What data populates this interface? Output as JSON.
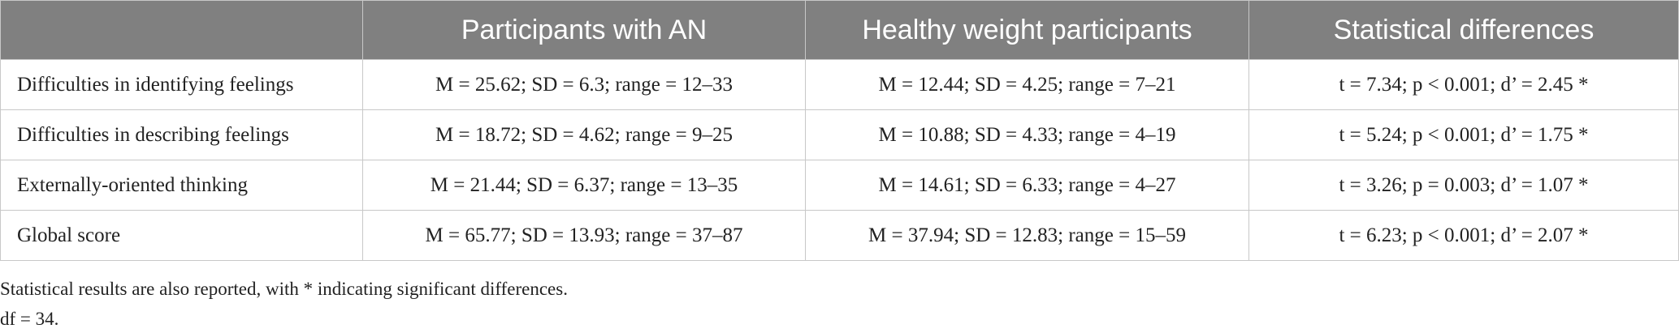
{
  "table": {
    "header": [
      "",
      "Participants with AN",
      "Healthy weight participants",
      "Statistical differences"
    ],
    "rows": [
      [
        "Difficulties in identifying feelings",
        "M = 25.62; SD = 6.3; range = 12–33",
        "M = 12.44; SD = 4.25; range = 7–21",
        "t = 7.34; p < 0.001; d’ = 2.45 *"
      ],
      [
        "Difficulties in describing feelings",
        "M = 18.72; SD = 4.62; range = 9–25",
        "M = 10.88; SD = 4.33; range = 4–19",
        "t = 5.24; p < 0.001; d’ = 1.75 *"
      ],
      [
        "Externally-oriented thinking",
        "M = 21.44; SD = 6.37; range = 13–35",
        "M = 14.61; SD = 6.33; range = 4–27",
        "t = 3.26; p = 0.003; d’ = 1.07 *"
      ],
      [
        "Global score",
        "M = 65.77; SD = 13.93; range = 37–87",
        "M = 37.94; SD = 12.83; range = 15–59",
        "t = 6.23; p < 0.001; d’ = 2.07 *"
      ]
    ]
  },
  "notes": [
    "Statistical results are also reported, with * indicating significant differences.",
    "df = 34."
  ]
}
